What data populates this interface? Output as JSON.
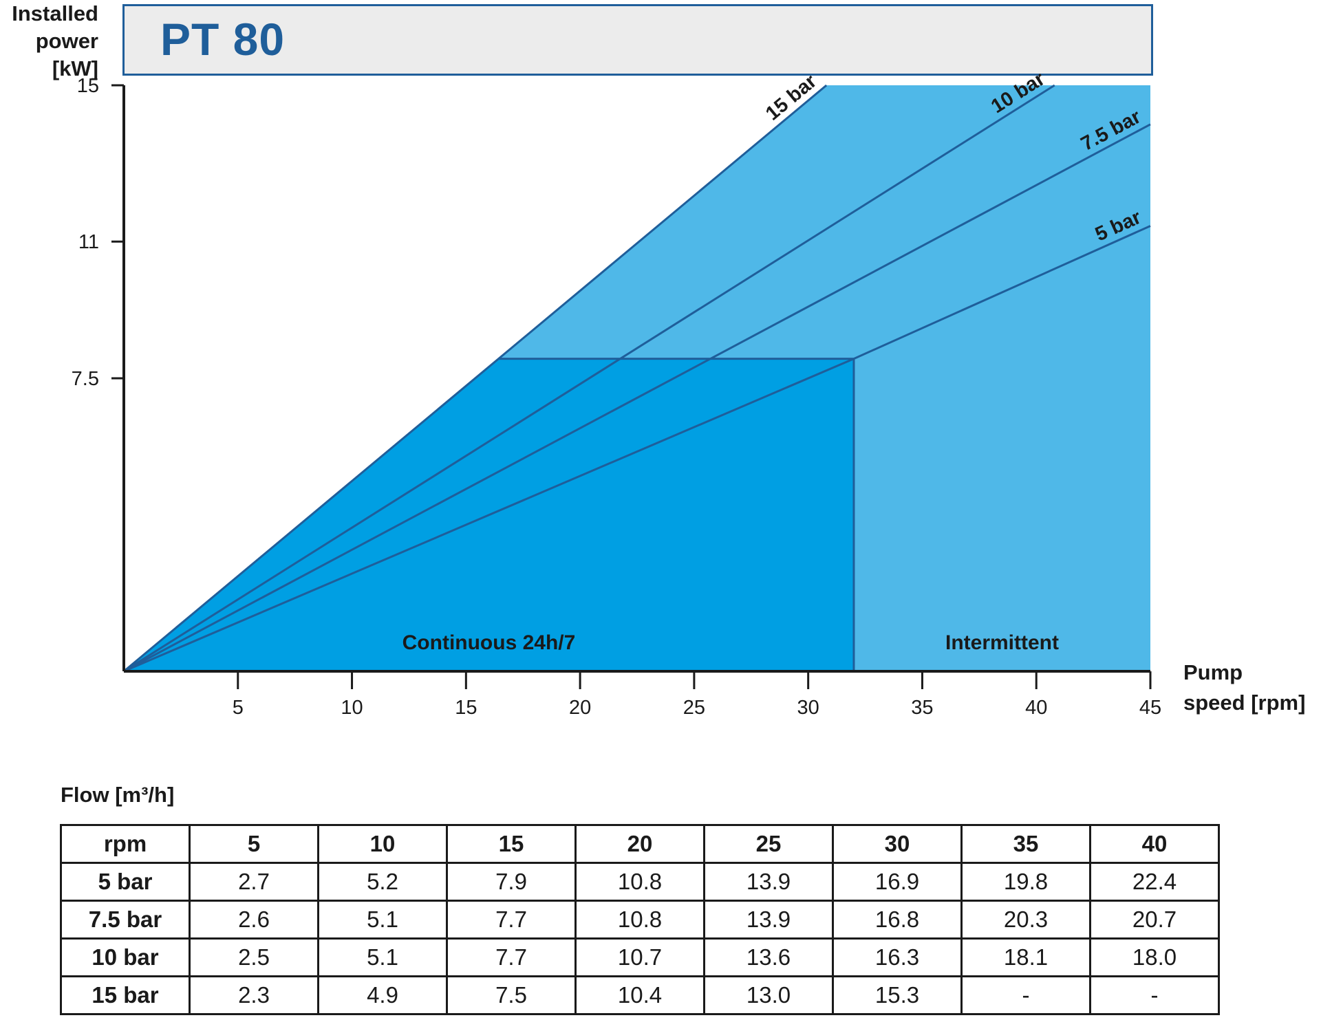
{
  "y_axis_title": [
    "Installed",
    "power",
    "[kW]"
  ],
  "title": "PT 80",
  "x_axis_title": [
    "Pump",
    "speed [rpm]"
  ],
  "chart_data": {
    "type": "line",
    "title": "PT 80",
    "xlabel": "Pump speed [rpm]",
    "ylabel": "Installed power [kW]",
    "xlim": [
      0,
      45
    ],
    "ylim": [
      0,
      15
    ],
    "x_ticks": [
      "5",
      "10",
      "15",
      "20",
      "25",
      "30",
      "35",
      "40",
      "45"
    ],
    "x_tick_values": [
      5,
      10,
      15,
      20,
      25,
      30,
      35,
      40,
      45
    ],
    "y_ticks": [
      "7.5",
      "11",
      "15"
    ],
    "y_tick_values": [
      7.5,
      11,
      15
    ],
    "series": [
      {
        "name": "15 bar",
        "points": [
          [
            0,
            0
          ],
          [
            30.8,
            15
          ]
        ]
      },
      {
        "name": "10 bar",
        "points": [
          [
            0,
            0
          ],
          [
            40.8,
            15
          ]
        ]
      },
      {
        "name": "7.5 bar",
        "points": [
          [
            0,
            0
          ],
          [
            45,
            14
          ]
        ]
      },
      {
        "name": "5 bar",
        "points": [
          [
            0,
            0
          ],
          [
            32,
            8
          ],
          [
            45,
            11.4
          ]
        ]
      }
    ],
    "regions": [
      {
        "label": "Continuous 24h/7",
        "x_max": 32,
        "y_max": 8,
        "color": "#009fe3"
      },
      {
        "label": "Intermittent",
        "x_max": 45,
        "y_max": 15,
        "color": "#4fb8e8"
      }
    ],
    "line_color": "#1f5e9a"
  },
  "flow_table": {
    "label": "Flow [m³/h]",
    "header": [
      "rpm",
      "5",
      "10",
      "15",
      "20",
      "25",
      "30",
      "35",
      "40"
    ],
    "rows": [
      [
        "5 bar",
        "2.7",
        "5.2",
        "7.9",
        "10.8",
        "13.9",
        "16.9",
        "19.8",
        "22.4"
      ],
      [
        "7.5 bar",
        "2.6",
        "5.1",
        "7.7",
        "10.8",
        "13.9",
        "16.8",
        "20.3",
        "20.7"
      ],
      [
        "10 bar",
        "2.5",
        "5.1",
        "7.7",
        "10.7",
        "13.6",
        "16.3",
        "18.1",
        "18.0"
      ],
      [
        "15 bar",
        "2.3",
        "4.9",
        "7.5",
        "10.4",
        "13.0",
        "15.3",
        "-",
        "-"
      ]
    ]
  }
}
